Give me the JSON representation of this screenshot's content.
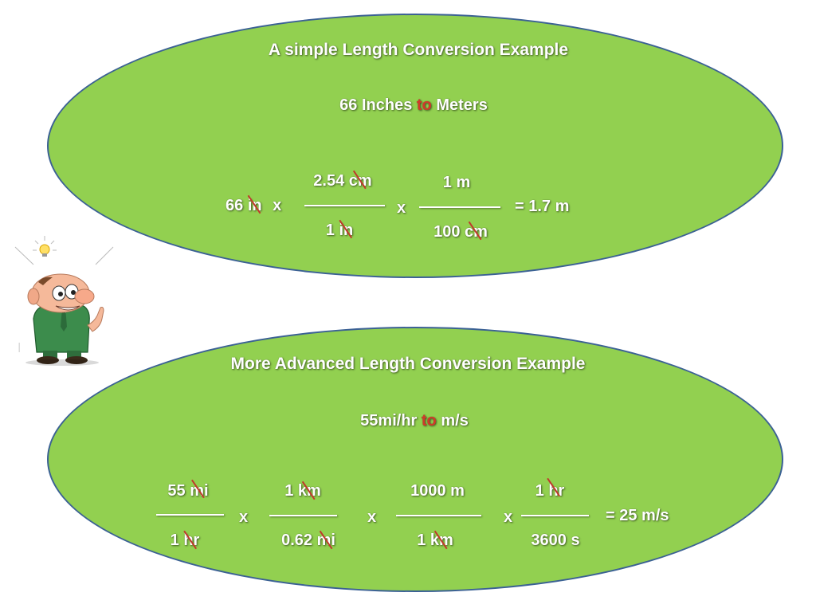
{
  "top": {
    "title": "A simple Length Conversion Example",
    "subtitle_a": "66 Inches",
    "subtitle_to": "to",
    "subtitle_b": "Meters",
    "start_value": "66",
    "start_unit": "in",
    "times": "x",
    "f1_num_value": "2.54",
    "f1_num_unit": "cm",
    "f1_den_value": "1",
    "f1_den_unit": "in",
    "f2_num": "1 m",
    "f2_den_value": "100",
    "f2_den_unit": "cm",
    "result": "= 1.7 m"
  },
  "bottom": {
    "title": "More Advanced Length Conversion Example",
    "subtitle_a": "55mi/hr",
    "subtitle_to": "to",
    "subtitle_b": "m/s",
    "times": "x",
    "f1_num_value": "55",
    "f1_num_unit": "mi",
    "f1_den_value": "1",
    "f1_den_unit": "hr",
    "f2_num_value": "1",
    "f2_num_unit": "km",
    "f2_den_value": "0.62",
    "f2_den_unit": "mi",
    "f3_num": "1000 m",
    "f3_den_value": "1",
    "f3_den_unit": "km",
    "f4_num_value": "1",
    "f4_num_unit": "hr",
    "f4_den": "3600 s",
    "result": "= 25 m/s"
  },
  "colors": {
    "ellipse_fill": "#92d050",
    "ellipse_border": "#3b6194",
    "to_accent": "#d03a2a",
    "cancel_mark": "#c0392b"
  },
  "mascot": {
    "icon": "thinking-man-lightbulb-icon"
  }
}
